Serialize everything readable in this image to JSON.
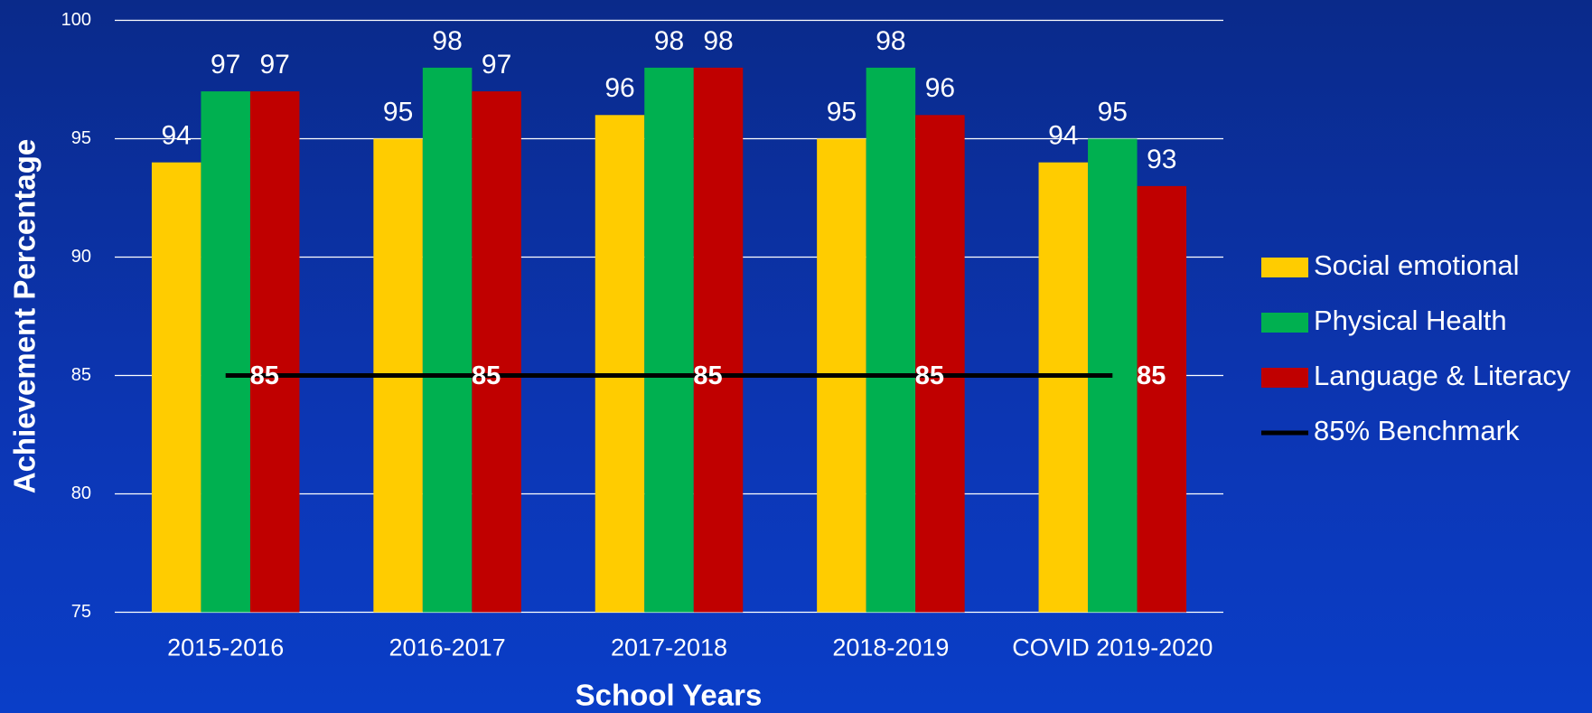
{
  "chart_data": {
    "type": "bar",
    "x_label": "School Years",
    "y_label": "Achievement Percentage",
    "categories": [
      "2015-2016",
      "2016-2017",
      "2017-2018",
      "2018-2019",
      "COVID 2019-2020"
    ],
    "series": [
      {
        "name": "Social emotional",
        "color": "#ffcc00",
        "values": [
          94,
          95,
          96,
          95,
          94
        ]
      },
      {
        "name": "Physical Health",
        "color": "#00b050",
        "values": [
          97,
          98,
          98,
          98,
          95
        ]
      },
      {
        "name": "Language & Literacy",
        "color": "#c00000",
        "values": [
          97,
          97,
          98,
          96,
          93
        ]
      },
      {
        "name": "85% Benchmark",
        "color": "#000000",
        "type": "line",
        "values": [
          85,
          85,
          85,
          85,
          85
        ]
      }
    ],
    "ylim": [
      75,
      100
    ],
    "yticks": [
      75,
      80,
      85,
      90,
      95,
      100
    ],
    "grid": true,
    "legend": "right"
  }
}
